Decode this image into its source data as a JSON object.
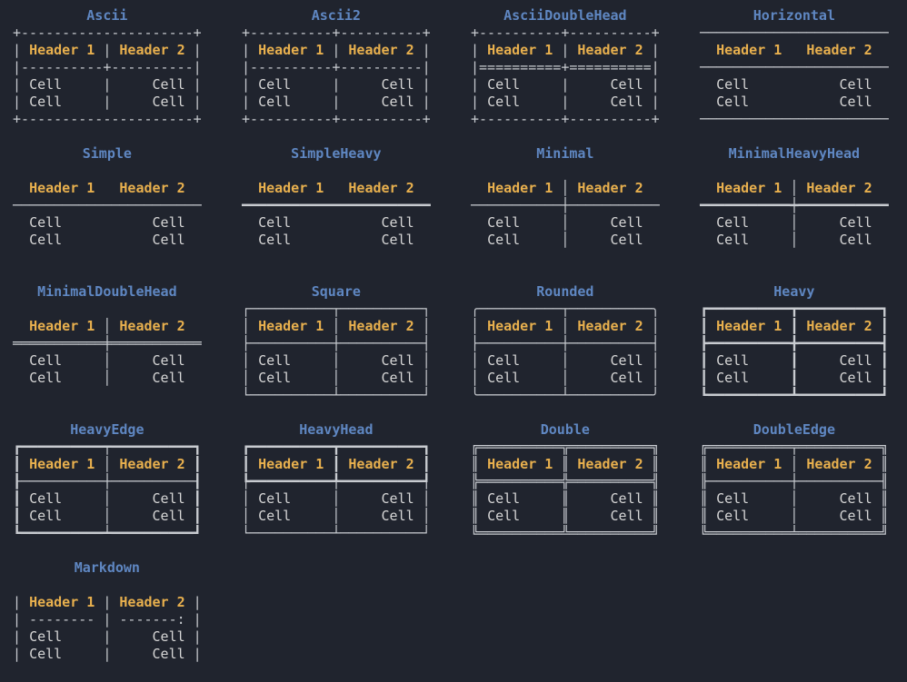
{
  "colors": {
    "background": "#20242e",
    "title": "#5f87c2",
    "header": "#e8b04e",
    "cell": "#d6d6d6",
    "border": "#c8cbd0"
  },
  "tokens": [
    {
      "text": "Header 1",
      "class": "tok-header",
      "name": "header-1-text"
    },
    {
      "text": "Header 2",
      "class": "tok-header",
      "name": "header-2-text"
    },
    {
      "text": "Cell",
      "class": "tok-cell",
      "name": "cell-text"
    }
  ],
  "tables": [
    {
      "title": "Ascii",
      "lines": [
        "+---------------------+",
        "| Header 1 | Header 2 |",
        "|----------+----------|",
        "| Cell     |     Cell |",
        "| Cell     |     Cell |",
        "+---------------------+"
      ]
    },
    {
      "title": "Ascii2",
      "lines": [
        "+----------+----------+",
        "| Header 1 | Header 2 |",
        "|----------+----------|",
        "| Cell     |     Cell |",
        "| Cell     |     Cell |",
        "+----------+----------+"
      ]
    },
    {
      "title": "AsciiDoubleHead",
      "lines": [
        "+----------+----------+",
        "| Header 1 | Header 2 |",
        "|==========+==========|",
        "| Cell     |     Cell |",
        "| Cell     |     Cell |",
        "+----------+----------+"
      ]
    },
    {
      "title": "Horizontal",
      "lines": [
        "───────────────────────",
        "  Header 1   Header 2  ",
        "───────────────────────",
        "  Cell           Cell  ",
        "  Cell           Cell  ",
        "───────────────────────"
      ]
    },
    {
      "title": "Simple",
      "lines": [
        "",
        "  Header 1   Header 2  ",
        "───────────────────────",
        "  Cell           Cell  ",
        "  Cell           Cell  "
      ]
    },
    {
      "title": "SimpleHeavy",
      "lines": [
        "",
        "  Header 1   Header 2  ",
        "━━━━━━━━━━━━━━━━━━━━━━━",
        "  Cell           Cell  ",
        "  Cell           Cell  "
      ]
    },
    {
      "title": "Minimal",
      "lines": [
        "",
        "  Header 1 │ Header 2  ",
        "───────────┼───────────",
        "  Cell     │     Cell  ",
        "  Cell     │     Cell  "
      ]
    },
    {
      "title": "MinimalHeavyHead",
      "lines": [
        "",
        "  Header 1 │ Header 2  ",
        "━━━━━━━━━━━┿━━━━━━━━━━━",
        "  Cell     │     Cell  ",
        "  Cell     │     Cell  "
      ]
    },
    {
      "title": "MinimalDoubleHead",
      "lines": [
        "",
        "  Header 1 │ Header 2  ",
        "═══════════╪═══════════",
        "  Cell     │     Cell  ",
        "  Cell     │     Cell  "
      ]
    },
    {
      "title": "Square",
      "lines": [
        "┌──────────┬──────────┐",
        "│ Header 1 │ Header 2 │",
        "├──────────┼──────────┤",
        "│ Cell     │     Cell │",
        "│ Cell     │     Cell │",
        "└──────────┴──────────┘"
      ]
    },
    {
      "title": "Rounded",
      "lines": [
        "╭──────────┬──────────╮",
        "│ Header 1 │ Header 2 │",
        "├──────────┼──────────┤",
        "│ Cell     │     Cell │",
        "│ Cell     │     Cell │",
        "╰──────────┴──────────╯"
      ]
    },
    {
      "title": "Heavy",
      "lines": [
        "┏━━━━━━━━━━┳━━━━━━━━━━┓",
        "┃ Header 1 ┃ Header 2 ┃",
        "┣━━━━━━━━━━╋━━━━━━━━━━┫",
        "┃ Cell     ┃     Cell ┃",
        "┃ Cell     ┃     Cell ┃",
        "┗━━━━━━━━━━┻━━━━━━━━━━┛"
      ]
    },
    {
      "title": "HeavyEdge",
      "lines": [
        "┏━━━━━━━━━━┯━━━━━━━━━━┓",
        "┃ Header 1 │ Header 2 ┃",
        "┠──────────┼──────────┨",
        "┃ Cell     │     Cell ┃",
        "┃ Cell     │     Cell ┃",
        "┗━━━━━━━━━━┷━━━━━━━━━━┛"
      ]
    },
    {
      "title": "HeavyHead",
      "lines": [
        "┏━━━━━━━━━━┳━━━━━━━━━━┓",
        "┃ Header 1 ┃ Header 2 ┃",
        "┡━━━━━━━━━━╇━━━━━━━━━━┩",
        "│ Cell     │     Cell │",
        "│ Cell     │     Cell │",
        "└──────────┴──────────┘"
      ]
    },
    {
      "title": "Double",
      "lines": [
        "╔══════════╦══════════╗",
        "║ Header 1 ║ Header 2 ║",
        "╠══════════╬══════════╣",
        "║ Cell     ║     Cell ║",
        "║ Cell     ║     Cell ║",
        "╚══════════╩══════════╝"
      ]
    },
    {
      "title": "DoubleEdge",
      "lines": [
        "╔══════════╤══════════╗",
        "║ Header 1 │ Header 2 ║",
        "╟──────────┼──────────╢",
        "║ Cell     │     Cell ║",
        "║ Cell     │     Cell ║",
        "╚══════════╧══════════╝"
      ]
    },
    {
      "title": "Markdown",
      "lines": [
        "",
        "| Header 1 | Header 2 |",
        "| -------- | -------: |",
        "| Cell     |     Cell |",
        "| Cell     |     Cell |"
      ]
    }
  ]
}
